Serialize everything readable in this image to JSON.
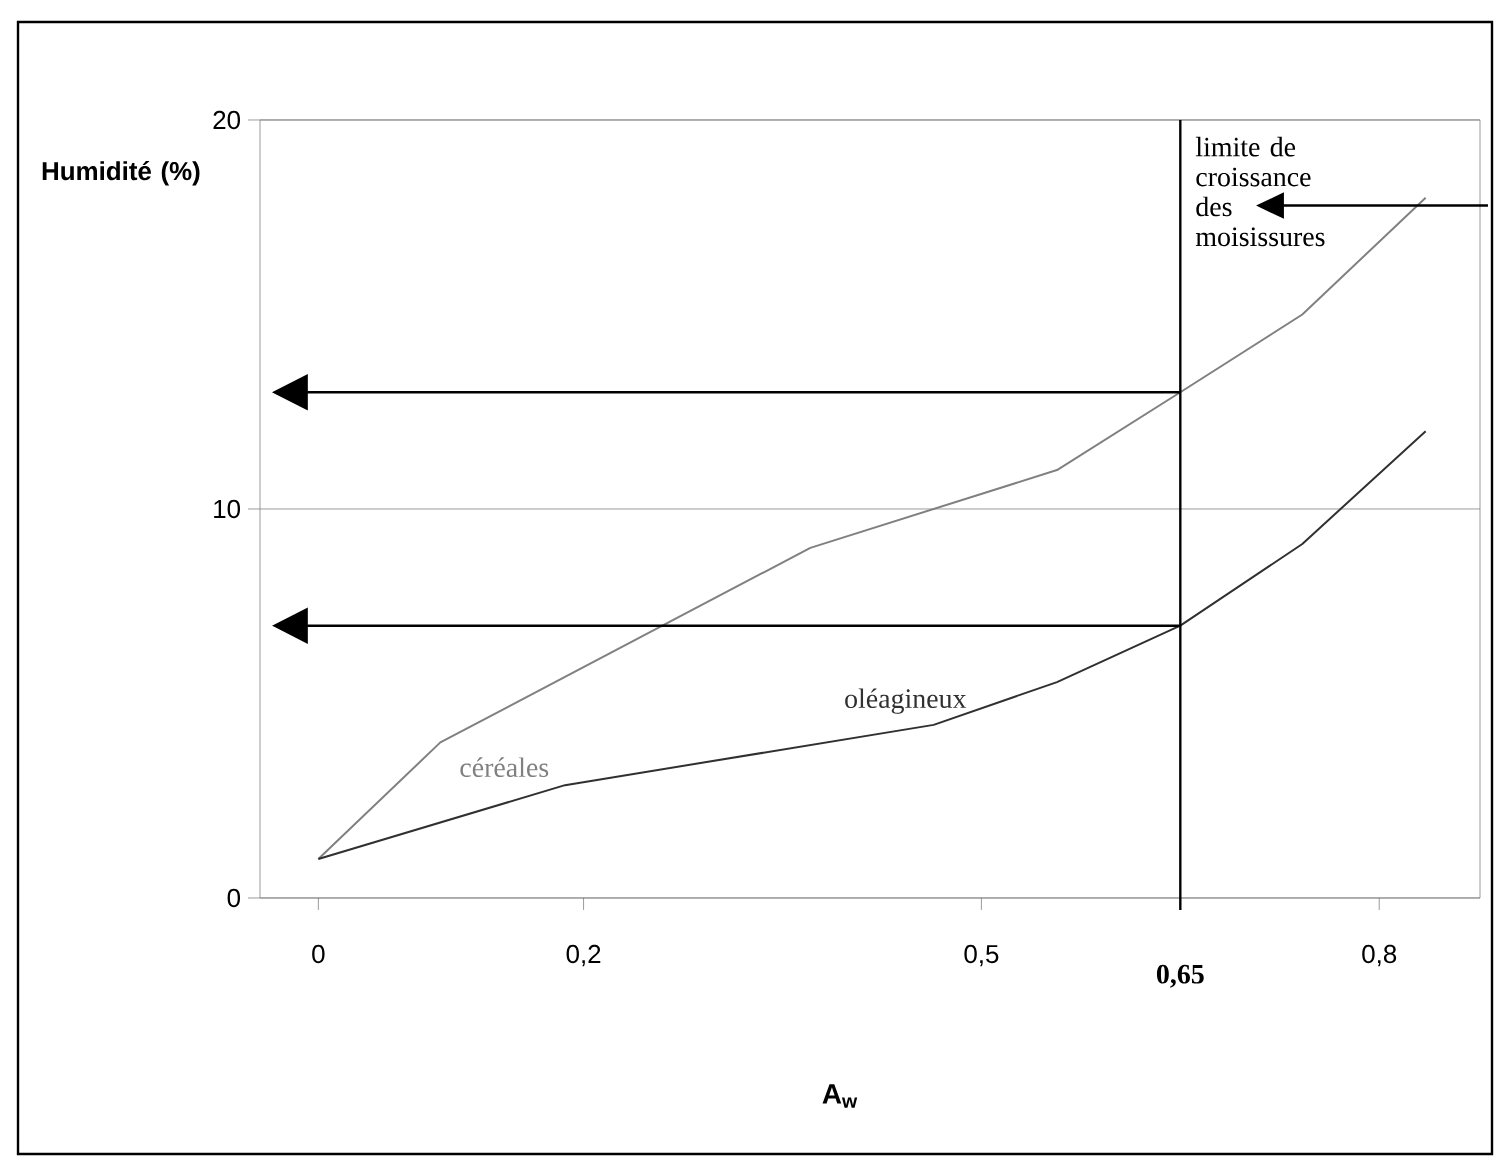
{
  "chart_data": {
    "type": "line",
    "ylabel": "Humidité (%)",
    "xlabel": "A$_{w}$",
    "xlim": [
      -0.044,
      0.876
    ],
    "ylim": [
      0,
      20
    ],
    "yticks": [
      0,
      10,
      20
    ],
    "xticks": [
      {
        "value": 0,
        "label": "0"
      },
      {
        "value": 0.2,
        "label": "0,2"
      },
      {
        "value": 0.5,
        "label": "0,5"
      },
      {
        "value": 0.8,
        "label": "0,8"
      }
    ],
    "grid": "y",
    "legend": false,
    "marker": "none",
    "line_style": "solid",
    "series": [
      {
        "name": "céréales",
        "color": "#808080",
        "x": [
          0,
          0.092,
          0.371,
          0.557,
          0.65,
          0.742,
          0.835
        ],
        "values": [
          1,
          4,
          9,
          11,
          13,
          15,
          18
        ]
      },
      {
        "name": "oléagineux",
        "color": "#303030",
        "x": [
          0,
          0.186,
          0.464,
          0.557,
          0.65,
          0.742,
          0.835
        ],
        "values": [
          1,
          2.9,
          4.45,
          5.55,
          7,
          9.1,
          12
        ]
      }
    ],
    "ref_lines": [
      {
        "axis": "x",
        "value": 0.65,
        "label": "0,65",
        "color": "#000000"
      }
    ],
    "annotations": [
      {
        "text": "limite de croissance des moisissures",
        "x": 0.65,
        "y": 17.8
      }
    ]
  }
}
